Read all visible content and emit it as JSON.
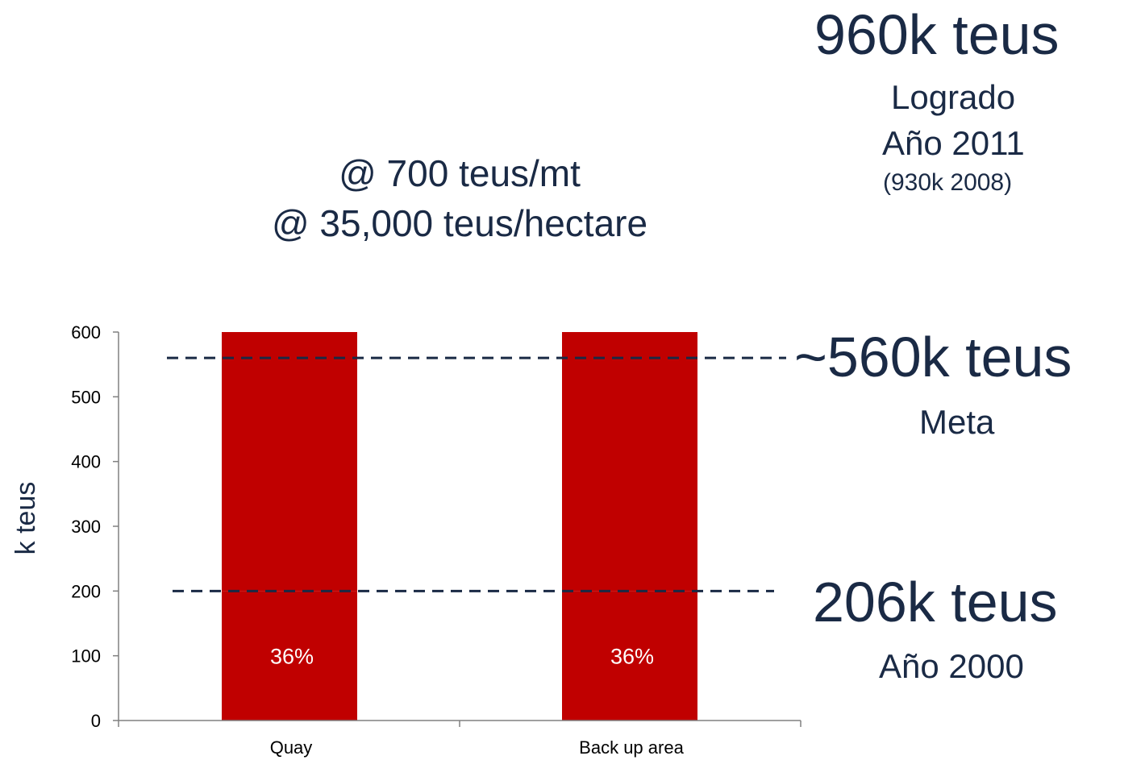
{
  "chart_data": {
    "type": "bar",
    "categories": [
      "Quay",
      "Back up area"
    ],
    "series": [
      {
        "values": [
          200,
          200
        ],
        "labels": [
          "36%",
          "36%"
        ],
        "color": "#c00000"
      },
      {
        "values": [
          400,
          400
        ],
        "color": "#c00000"
      }
    ],
    "ylabel": "k teus",
    "ylim": [
      0,
      600
    ],
    "yticks": [
      0,
      100,
      200,
      300,
      400,
      500,
      600
    ],
    "reference_lines": [
      {
        "value": 560,
        "style": "dashed",
        "color": "#1a2a45"
      },
      {
        "value": 200,
        "style": "dashed",
        "color": "#1a2a45"
      }
    ]
  },
  "overlay": {
    "line1": "@ 700 teus/mt",
    "line2": "@ 35,000 teus/hectare"
  },
  "annotations": {
    "top": {
      "value": "960k teus",
      "line1": "Logrado",
      "line2": "Año 2011",
      "line3": "(930k 2008)"
    },
    "meta": {
      "value": "~560k teus",
      "line1": "Meta"
    },
    "base": {
      "value": "206k teus",
      "line1": "Año 2000"
    }
  }
}
